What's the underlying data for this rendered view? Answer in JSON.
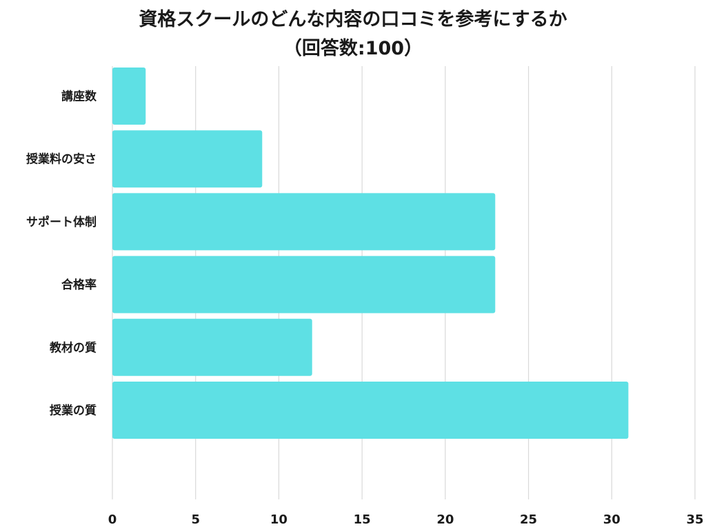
{
  "chart_data": {
    "type": "bar",
    "orientation": "horizontal",
    "title": "資格スクールのどんな内容の口コミを参考にするか",
    "subtitle": "（回答数:100）",
    "categories": [
      "講座数",
      "授業料の安さ",
      "サポート体制",
      "合格率",
      "教材の質",
      "授業の質"
    ],
    "values": [
      2,
      9,
      23,
      23,
      12,
      31
    ],
    "xlim": [
      0,
      35
    ],
    "xticks": [
      "0",
      "5",
      "10",
      "15",
      "20",
      "25",
      "30",
      "35"
    ],
    "xlabel": "",
    "ylabel": "",
    "grid": true,
    "bar_color": "#5ee0e4",
    "grid_color": "#d9d9d9"
  }
}
